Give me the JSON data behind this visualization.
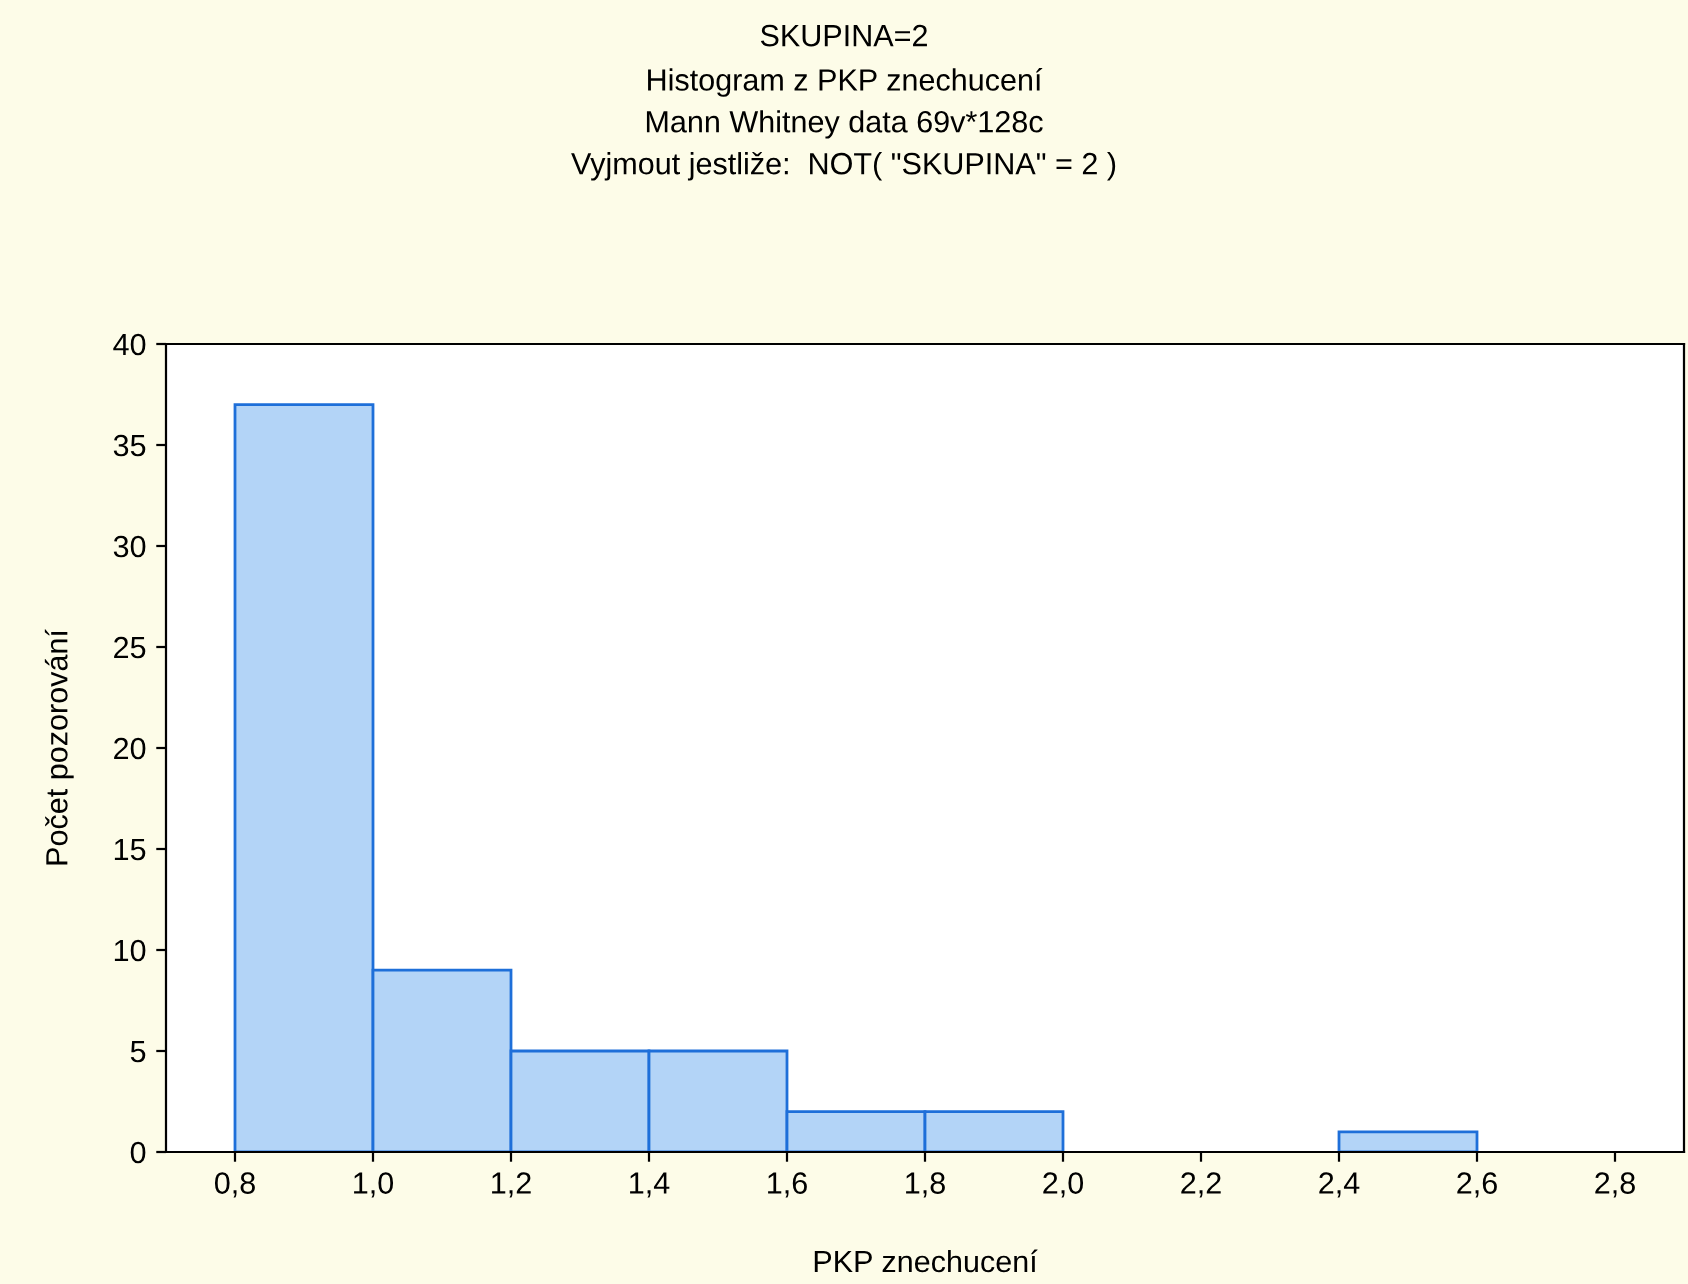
{
  "chart_data": {
    "type": "histogram",
    "title": "SKUPINA=2",
    "subtitle": "Histogram z PKP znechucení\nMann Whitney data 69v*128c\nVyjmout jestliže:  NOT( \"SKUPINA\" = 2 )",
    "xlabel": "PKP znechucení",
    "ylabel": "Počet pozorování",
    "bins": [
      0.8,
      1.0,
      1.2,
      1.4,
      1.6,
      1.8,
      2.0,
      2.2,
      2.4,
      2.6
    ],
    "values": [
      37,
      9,
      5,
      5,
      2,
      2,
      0,
      0,
      1
    ],
    "color": "#b3d4f7",
    "xlim": [
      0.7,
      2.9
    ],
    "xticks": [
      {
        "value": 0.8,
        "label": "0,8"
      },
      {
        "value": 1.0,
        "label": "1,0"
      },
      {
        "value": 1.2,
        "label": "1,2"
      },
      {
        "value": 1.4,
        "label": "1,4"
      },
      {
        "value": 1.6,
        "label": "1,6"
      },
      {
        "value": 1.8,
        "label": "1,8"
      },
      {
        "value": 2.0,
        "label": "2,0"
      },
      {
        "value": 2.2,
        "label": "2,2"
      },
      {
        "value": 2.4,
        "label": "2,4"
      },
      {
        "value": 2.6,
        "label": "2,6"
      },
      {
        "value": 2.8,
        "label": "2,8"
      }
    ],
    "ylim": [
      0,
      40
    ],
    "yticks": [
      0,
      5,
      10,
      15,
      20,
      25,
      30,
      35,
      40
    ],
    "grid": false,
    "legend": false
  }
}
